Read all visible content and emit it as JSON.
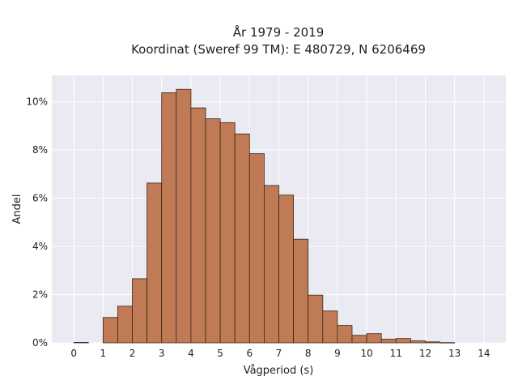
{
  "chart_data": {
    "type": "bar",
    "title": "År 1979 - 2019",
    "subtitle": "Koordinat (Sweref 99 TM): E 480729, N 6206469",
    "xlabel": "Vågperiod (s)",
    "ylabel": "Andel",
    "xlim": [
      -0.75,
      14.75
    ],
    "ylim": [
      0,
      11.1
    ],
    "x_ticks": [
      0,
      1,
      2,
      3,
      4,
      5,
      6,
      7,
      8,
      9,
      10,
      11,
      12,
      13,
      14
    ],
    "y_ticks": [
      0,
      2,
      4,
      6,
      8,
      10
    ],
    "y_tick_labels": [
      "0%",
      "2%",
      "4%",
      "6%",
      "8%",
      "10%"
    ],
    "bin_width": 0.5,
    "bins": [
      {
        "x0": 0.0,
        "value": 0.02
      },
      {
        "x0": 1.0,
        "value": 1.05
      },
      {
        "x0": 1.5,
        "value": 1.52
      },
      {
        "x0": 2.0,
        "value": 2.66
      },
      {
        "x0": 2.5,
        "value": 6.63
      },
      {
        "x0": 3.0,
        "value": 10.38
      },
      {
        "x0": 3.5,
        "value": 10.52
      },
      {
        "x0": 4.0,
        "value": 9.75
      },
      {
        "x0": 4.5,
        "value": 9.3
      },
      {
        "x0": 5.0,
        "value": 9.14
      },
      {
        "x0": 5.5,
        "value": 8.67
      },
      {
        "x0": 6.0,
        "value": 7.85
      },
      {
        "x0": 6.5,
        "value": 6.53
      },
      {
        "x0": 7.0,
        "value": 6.13
      },
      {
        "x0": 7.5,
        "value": 4.3
      },
      {
        "x0": 8.0,
        "value": 1.98
      },
      {
        "x0": 8.5,
        "value": 1.32
      },
      {
        "x0": 9.0,
        "value": 0.72
      },
      {
        "x0": 9.5,
        "value": 0.31
      },
      {
        "x0": 10.0,
        "value": 0.38
      },
      {
        "x0": 10.5,
        "value": 0.15
      },
      {
        "x0": 11.0,
        "value": 0.18
      },
      {
        "x0": 11.5,
        "value": 0.08
      },
      {
        "x0": 12.0,
        "value": 0.04
      },
      {
        "x0": 12.5,
        "value": 0.01
      }
    ],
    "bar_color": "#c07b56",
    "edge_color": "#3a2418",
    "plot_background": "#eaeaf2",
    "grid": true
  }
}
